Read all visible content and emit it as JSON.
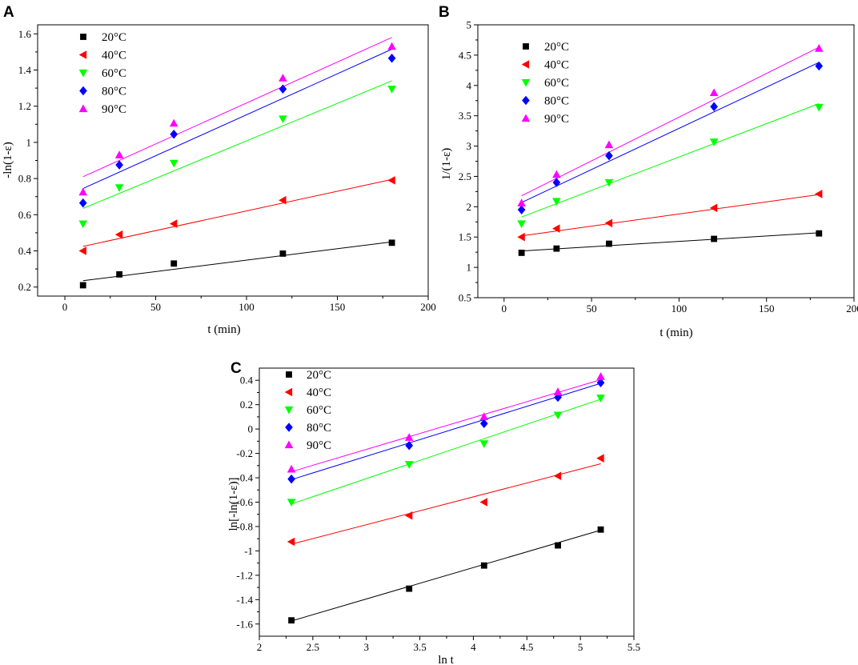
{
  "colors": {
    "20C": "#000000",
    "40C": "#ff0000",
    "60C": "#00ff00",
    "80C": "#0000ff",
    "90C": "#ff00ff"
  },
  "chart_data": [
    {
      "panel": "A",
      "type": "scatter",
      "xlabel": "t (min)",
      "ylabel": "-ln(1-ε)",
      "xlim": [
        -15,
        200
      ],
      "ylim": [
        0.15,
        1.65
      ],
      "xticks": [
        0,
        50,
        100,
        150,
        200
      ],
      "yticks": [
        0.2,
        0.4,
        0.6,
        0.8,
        1.0,
        1.2,
        1.4,
        1.6
      ],
      "ytick_labels": [
        "0.2",
        "0.4",
        "0.6",
        "0.8",
        "1",
        "1.2",
        "1.4",
        "1.6"
      ],
      "legend_position": "top-left",
      "series": [
        {
          "name": "20°C",
          "color": "#000000",
          "marker": "square",
          "x": [
            10,
            30,
            60,
            120,
            180
          ],
          "y": [
            0.21,
            0.27,
            0.33,
            0.385,
            0.445
          ],
          "fit": [
            [
              10,
              0.235
            ],
            [
              180,
              0.45
            ]
          ]
        },
        {
          "name": "40°C",
          "color": "#ff0000",
          "marker": "triangle-left",
          "x": [
            10,
            30,
            60,
            120,
            180
          ],
          "y": [
            0.4,
            0.49,
            0.55,
            0.68,
            0.79
          ],
          "fit": [
            [
              10,
              0.425
            ],
            [
              180,
              0.795
            ]
          ]
        },
        {
          "name": "60°C",
          "color": "#00ff00",
          "marker": "triangle-down",
          "x": [
            10,
            30,
            60,
            120,
            180
          ],
          "y": [
            0.55,
            0.75,
            0.885,
            1.13,
            1.295
          ],
          "fit": [
            [
              10,
              0.635
            ],
            [
              180,
              1.34
            ]
          ]
        },
        {
          "name": "80°C",
          "color": "#0000ff",
          "marker": "diamond",
          "x": [
            10,
            30,
            60,
            120,
            180
          ],
          "y": [
            0.665,
            0.875,
            1.045,
            1.295,
            1.465
          ],
          "fit": [
            [
              10,
              0.745
            ],
            [
              180,
              1.515
            ]
          ]
        },
        {
          "name": "90°C",
          "color": "#ff00ff",
          "marker": "triangle-up",
          "x": [
            10,
            30,
            60,
            120,
            180
          ],
          "y": [
            0.725,
            0.93,
            1.105,
            1.355,
            1.53
          ],
          "fit": [
            [
              10,
              0.81
            ],
            [
              180,
              1.58
            ]
          ]
        }
      ]
    },
    {
      "panel": "B",
      "type": "scatter",
      "xlabel": "t (min)",
      "ylabel": "1/(1-ε)",
      "xlim": [
        -15,
        200
      ],
      "ylim": [
        0.5,
        5.0
      ],
      "xticks": [
        0,
        50,
        100,
        150,
        200
      ],
      "yticks": [
        0.5,
        1.0,
        1.5,
        2.0,
        2.5,
        3.0,
        3.5,
        4.0,
        4.5,
        5.0
      ],
      "ytick_labels": [
        "0.5",
        "1",
        "1.5",
        "2",
        "2.5",
        "3",
        "3.5",
        "4",
        "4.5",
        "5"
      ],
      "legend_position": "top-left",
      "series": [
        {
          "name": "20°C",
          "color": "#000000",
          "marker": "square",
          "x": [
            10,
            30,
            60,
            120,
            180
          ],
          "y": [
            1.24,
            1.31,
            1.39,
            1.47,
            1.56
          ],
          "fit": [
            [
              10,
              1.27
            ],
            [
              180,
              1.57
            ]
          ]
        },
        {
          "name": "40°C",
          "color": "#ff0000",
          "marker": "triangle-left",
          "x": [
            10,
            30,
            60,
            120,
            180
          ],
          "y": [
            1.5,
            1.64,
            1.73,
            1.98,
            2.21
          ],
          "fit": [
            [
              10,
              1.52
            ],
            [
              180,
              2.2
            ]
          ]
        },
        {
          "name": "60°C",
          "color": "#00ff00",
          "marker": "triangle-down",
          "x": [
            10,
            30,
            60,
            120,
            180
          ],
          "y": [
            1.72,
            2.09,
            2.4,
            3.07,
            3.64
          ],
          "fit": [
            [
              10,
              1.83
            ],
            [
              180,
              3.7
            ]
          ]
        },
        {
          "name": "80°C",
          "color": "#0000ff",
          "marker": "diamond",
          "x": [
            10,
            30,
            60,
            120,
            180
          ],
          "y": [
            1.95,
            2.4,
            2.84,
            3.65,
            4.32
          ],
          "fit": [
            [
              10,
              2.07
            ],
            [
              180,
              4.38
            ]
          ]
        },
        {
          "name": "90°C",
          "color": "#ff00ff",
          "marker": "triangle-up",
          "x": [
            10,
            30,
            60,
            120,
            180
          ],
          "y": [
            2.06,
            2.53,
            3.02,
            3.88,
            4.61
          ],
          "fit": [
            [
              10,
              2.18
            ],
            [
              180,
              4.63
            ]
          ]
        }
      ]
    },
    {
      "panel": "C",
      "type": "scatter",
      "xlabel": "ln t",
      "ylabel": "ln[-ln(1-ε)]",
      "xlim": [
        2.0,
        5.5
      ],
      "ylim": [
        -1.7,
        0.5
      ],
      "xticks": [
        2.0,
        2.5,
        3.0,
        3.5,
        4.0,
        4.5,
        5.0,
        5.5
      ],
      "xtick_labels": [
        "2",
        "2.5",
        "3",
        "3.5",
        "4",
        "4.5",
        "5",
        "5.5"
      ],
      "yticks": [
        -1.6,
        -1.4,
        -1.2,
        -1.0,
        -0.8,
        -0.6,
        -0.4,
        -0.2,
        0.0,
        0.2,
        0.4
      ],
      "ytick_labels": [
        "-1.6",
        "-1.4",
        "-1.2",
        "-1",
        "-0.8",
        "-0.6",
        "-0.4",
        "-0.2",
        "0",
        "0.2",
        "0.4"
      ],
      "legend_position": "top-left",
      "series": [
        {
          "name": "20°C",
          "color": "#000000",
          "marker": "square",
          "x": [
            2.3,
            3.4,
            4.1,
            4.79,
            5.19
          ],
          "y": [
            -1.57,
            -1.31,
            -1.12,
            -0.955,
            -0.825
          ],
          "fit": [
            [
              2.3,
              -1.575
            ],
            [
              5.19,
              -0.83
            ]
          ]
        },
        {
          "name": "40°C",
          "color": "#ff0000",
          "marker": "triangle-left",
          "x": [
            2.3,
            3.4,
            4.1,
            4.79,
            5.19
          ],
          "y": [
            -0.925,
            -0.71,
            -0.6,
            -0.385,
            -0.24
          ],
          "fit": [
            [
              2.3,
              -0.945
            ],
            [
              5.19,
              -0.285
            ]
          ]
        },
        {
          "name": "60°C",
          "color": "#00ff00",
          "marker": "triangle-down",
          "x": [
            2.3,
            3.4,
            4.1,
            4.79,
            5.19
          ],
          "y": [
            -0.6,
            -0.29,
            -0.12,
            0.115,
            0.255
          ],
          "fit": [
            [
              2.3,
              -0.615
            ],
            [
              5.19,
              0.245
            ]
          ]
        },
        {
          "name": "80°C",
          "color": "#0000ff",
          "marker": "diamond",
          "x": [
            2.3,
            3.4,
            4.1,
            4.79,
            5.19
          ],
          "y": [
            -0.41,
            -0.135,
            0.045,
            0.26,
            0.38
          ],
          "fit": [
            [
              2.3,
              -0.415
            ],
            [
              5.19,
              0.375
            ]
          ]
        },
        {
          "name": "90°C",
          "color": "#ff00ff",
          "marker": "triangle-up",
          "x": [
            2.3,
            3.4,
            4.1,
            4.79,
            5.19
          ],
          "y": [
            -0.33,
            -0.07,
            0.1,
            0.305,
            0.43
          ],
          "fit": [
            [
              2.3,
              -0.35
            ],
            [
              5.19,
              0.405
            ]
          ]
        }
      ]
    }
  ]
}
